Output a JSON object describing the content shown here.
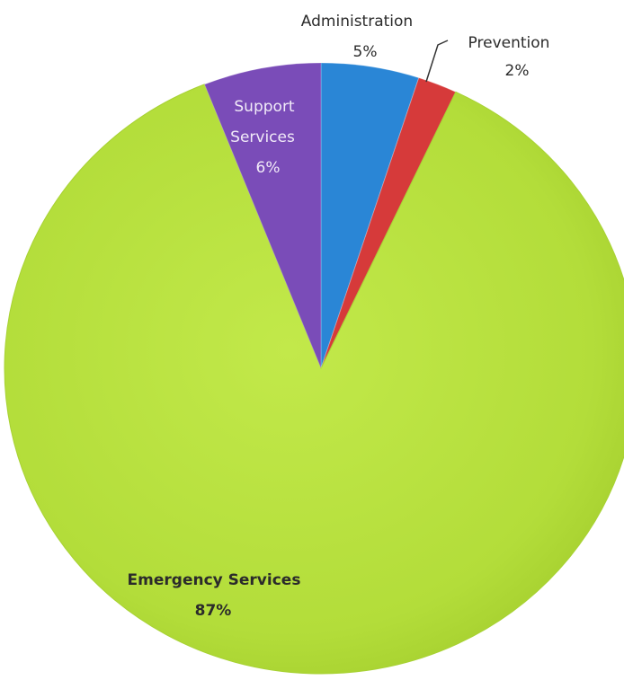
{
  "chart_data": {
    "type": "pie",
    "title": "",
    "slices": [
      {
        "label": "Administration",
        "percent_label": "5%",
        "value": 5,
        "color": "#2a86d6"
      },
      {
        "label": "Prevention",
        "percent_label": "2%",
        "value": 2,
        "color": "#d63a3a"
      },
      {
        "label": "Emergency Services",
        "percent_label": "87%",
        "value": 87,
        "color": "#b5e03a"
      },
      {
        "label": "Support Services",
        "percent_label": "6%",
        "value": 6,
        "color": "#7a4cb8"
      }
    ],
    "legend": "none",
    "data_labels": "on-chart"
  },
  "labels": {
    "administration": {
      "name": "Administration",
      "pct": "5%"
    },
    "prevention": {
      "name": "Prevention",
      "pct": "2%"
    },
    "emergency": {
      "name": "Emergency Services",
      "pct": "87%"
    },
    "support": {
      "name_line1": "Support",
      "name_line2": "Services",
      "pct": "6%"
    }
  }
}
